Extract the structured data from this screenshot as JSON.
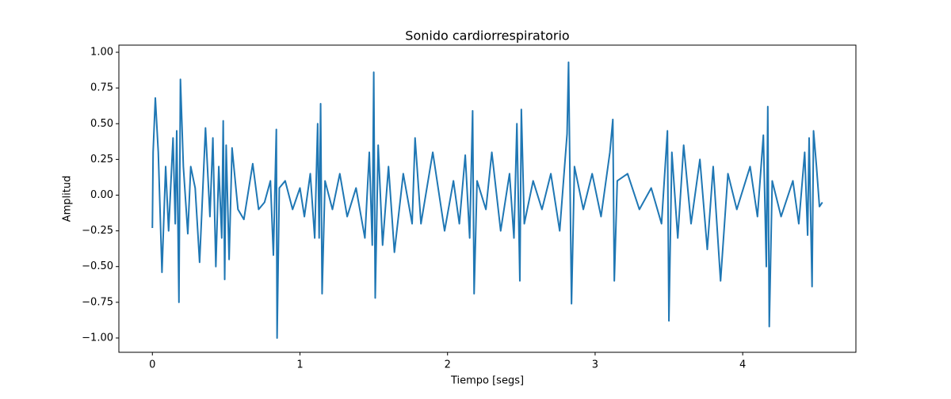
{
  "chart_data": {
    "type": "line",
    "title": "Sonido cardiorrespiratorio",
    "x_label": "Tiempo [segs]",
    "y_label": "Amplitud",
    "xlim": [
      -0.227,
      4.767
    ],
    "ylim": [
      -1.1,
      1.05
    ],
    "xticks": [
      0,
      1,
      2,
      3,
      4
    ],
    "yticks": [
      {
        "value": -1.0,
        "label": "−1.00"
      },
      {
        "value": -0.75,
        "label": "−0.75"
      },
      {
        "value": -0.5,
        "label": "−0.50"
      },
      {
        "value": -0.25,
        "label": "−0.25"
      },
      {
        "value": 0,
        "label": "0.00"
      },
      {
        "value": 0.25,
        "label": "0.25"
      },
      {
        "value": 0.5,
        "label": "0.50"
      },
      {
        "value": 0.75,
        "label": "0.75"
      },
      {
        "value": 1.0,
        "label": "1.00"
      }
    ],
    "color": "#1f77b4",
    "x": [
      0,
      0.005,
      0.02,
      0.04,
      0.065,
      0.09,
      0.11,
      0.14,
      0.155,
      0.165,
      0.18,
      0.19,
      0.21,
      0.24,
      0.26,
      0.29,
      0.32,
      0.36,
      0.39,
      0.41,
      0.43,
      0.45,
      0.47,
      0.48,
      0.49,
      0.5,
      0.52,
      0.54,
      0.58,
      0.62,
      0.68,
      0.72,
      0.76,
      0.8,
      0.82,
      0.84,
      0.845,
      0.86,
      0.9,
      0.95,
      1.0,
      1.03,
      1.07,
      1.1,
      1.12,
      1.13,
      1.14,
      1.15,
      1.17,
      1.22,
      1.27,
      1.32,
      1.38,
      1.44,
      1.47,
      1.49,
      1.5,
      1.51,
      1.53,
      1.56,
      1.6,
      1.64,
      1.7,
      1.76,
      1.78,
      1.82,
      1.9,
      1.98,
      2.04,
      2.08,
      2.12,
      2.15,
      2.17,
      2.18,
      2.2,
      2.26,
      2.3,
      2.36,
      2.42,
      2.45,
      2.47,
      2.49,
      2.5,
      2.52,
      2.58,
      2.64,
      2.7,
      2.76,
      2.81,
      2.82,
      2.84,
      2.86,
      2.92,
      2.98,
      3.04,
      3.1,
      3.12,
      3.13,
      3.15,
      3.22,
      3.3,
      3.38,
      3.45,
      3.49,
      3.5,
      3.52,
      3.56,
      3.6,
      3.65,
      3.71,
      3.76,
      3.8,
      3.85,
      3.9,
      3.96,
      4.05,
      4.1,
      4.14,
      4.16,
      4.17,
      4.18,
      4.2,
      4.26,
      4.34,
      4.38,
      4.42,
      4.44,
      4.45,
      4.47,
      4.48,
      4.5,
      4.52,
      4.54
    ],
    "values": [
      -0.23,
      0.3,
      0.68,
      0.3,
      -0.54,
      0.2,
      -0.25,
      0.4,
      -0.2,
      0.45,
      -0.75,
      0.81,
      0.2,
      -0.27,
      0.2,
      0.05,
      -0.47,
      0.47,
      -0.15,
      0.4,
      -0.5,
      0.2,
      -0.3,
      0.52,
      -0.59,
      0.35,
      -0.45,
      0.33,
      -0.1,
      -0.17,
      0.22,
      -0.1,
      -0.05,
      0.1,
      -0.42,
      0.46,
      -1.0,
      0.05,
      0.1,
      -0.1,
      0.05,
      -0.15,
      0.15,
      -0.3,
      0.5,
      -0.3,
      0.64,
      -0.69,
      0.1,
      -0.1,
      0.15,
      -0.15,
      0.05,
      -0.3,
      0.3,
      -0.35,
      0.86,
      -0.72,
      0.35,
      -0.35,
      0.2,
      -0.4,
      0.15,
      -0.2,
      0.4,
      -0.2,
      0.3,
      -0.25,
      0.1,
      -0.2,
      0.28,
      -0.3,
      0.59,
      -0.69,
      0.1,
      -0.1,
      0.3,
      -0.25,
      0.15,
      -0.3,
      0.5,
      -0.6,
      0.6,
      -0.2,
      0.1,
      -0.1,
      0.15,
      -0.25,
      0.43,
      0.93,
      -0.76,
      0.2,
      -0.1,
      0.15,
      -0.15,
      0.3,
      0.53,
      -0.6,
      0.1,
      0.15,
      -0.1,
      0.05,
      -0.2,
      0.45,
      -0.88,
      0.3,
      -0.3,
      0.35,
      -0.2,
      0.25,
      -0.38,
      0.2,
      -0.6,
      0.15,
      -0.1,
      0.2,
      -0.15,
      0.42,
      -0.5,
      0.62,
      -0.92,
      0.1,
      -0.15,
      0.1,
      -0.2,
      0.3,
      -0.28,
      0.4,
      -0.64,
      0.45,
      0.2,
      -0.08,
      -0.05
    ]
  }
}
